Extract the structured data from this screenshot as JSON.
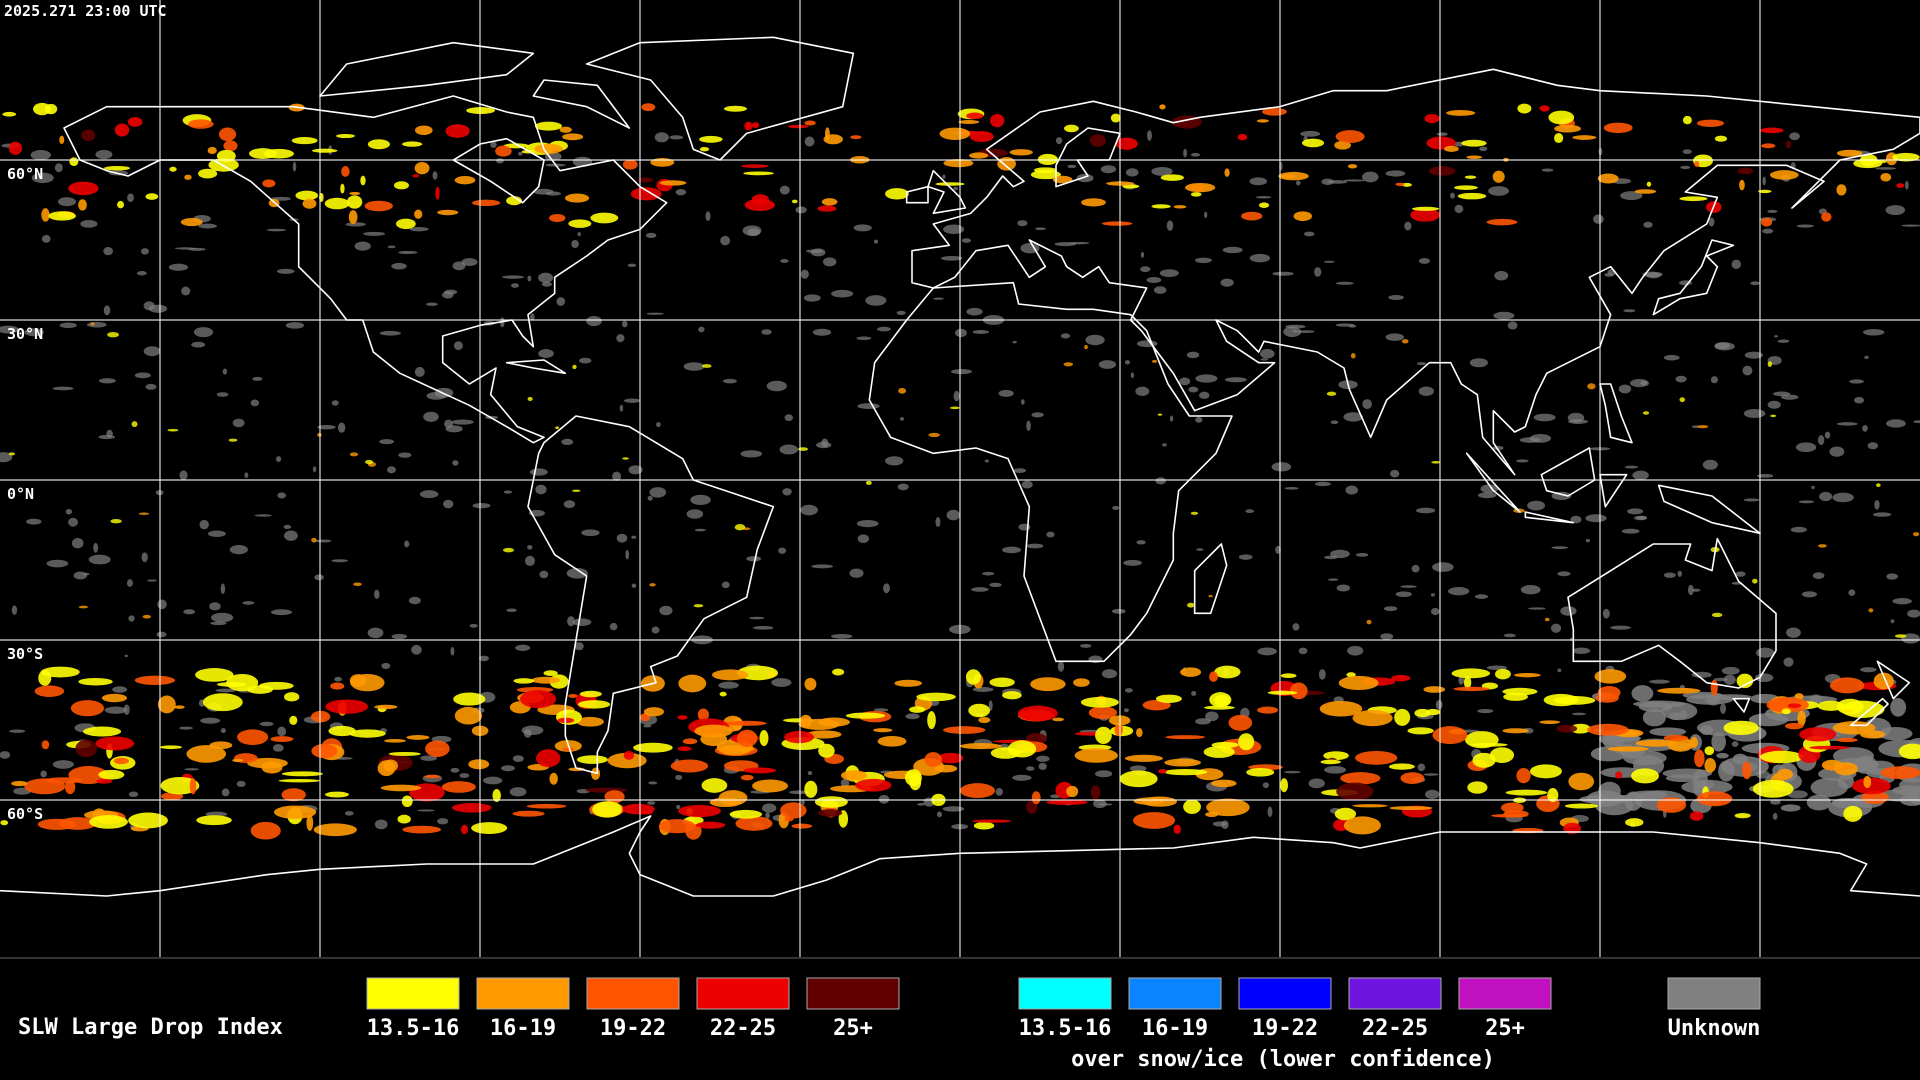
{
  "header": {
    "timestamp": "2025.271 23:00 UTC"
  },
  "map": {
    "latitude_labels": [
      "60°N",
      "30°N",
      "0°N",
      "30°S",
      "60°S"
    ]
  },
  "legend": {
    "title": "SLW Large Drop Index",
    "items": [
      {
        "label": "13.5-16",
        "color": "#ffff00"
      },
      {
        "label": "16-19",
        "color": "#ff9900"
      },
      {
        "label": "19-22",
        "color": "#ff5500"
      },
      {
        "label": "22-25",
        "color": "#ee0000"
      },
      {
        "label": "25+",
        "color": "#600000"
      }
    ],
    "snow_ice_items": [
      {
        "label": "13.5-16",
        "color": "#00ffff"
      },
      {
        "label": "16-19",
        "color": "#0a84ff"
      },
      {
        "label": "19-22",
        "color": "#0000ff"
      },
      {
        "label": "22-25",
        "color": "#7014e0"
      },
      {
        "label": "25+",
        "color": "#c010c0"
      }
    ],
    "snow_ice_caption": "over snow/ice (lower confidence)",
    "unknown": {
      "label": "Unknown",
      "color": "#808080"
    }
  }
}
